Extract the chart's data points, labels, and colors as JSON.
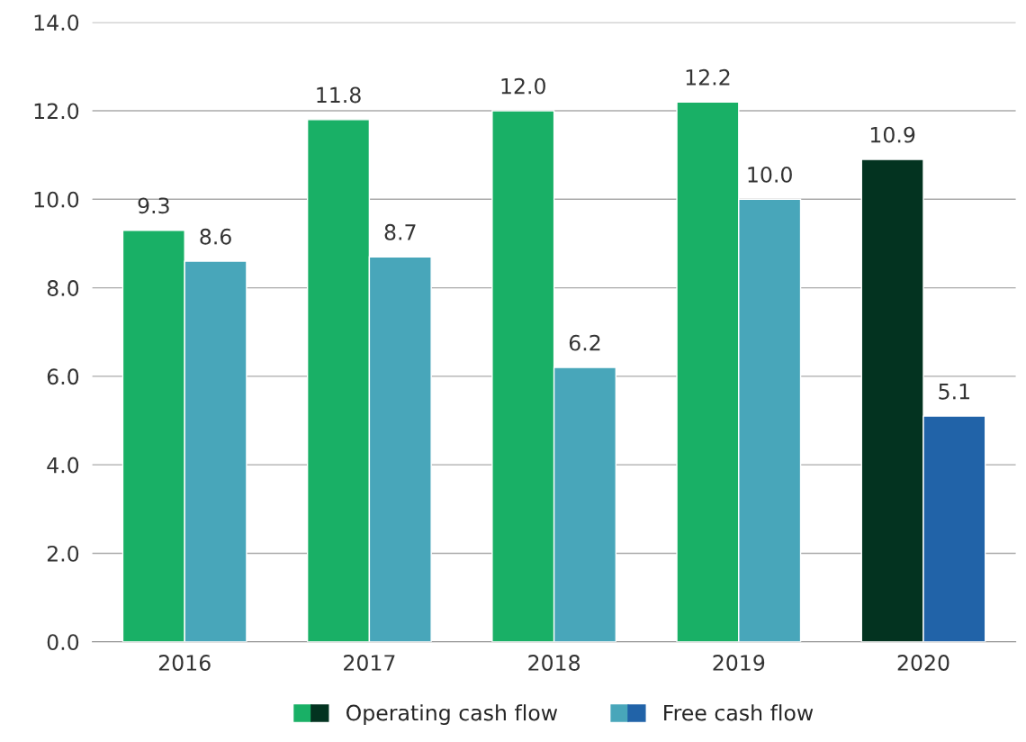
{
  "chart_data": {
    "type": "bar",
    "categories": [
      "2016",
      "2017",
      "2018",
      "2019",
      "2020"
    ],
    "series": [
      {
        "name": "Operating cash flow",
        "color": "#19b066",
        "colors": [
          "#19b066",
          "#19b066",
          "#19b066",
          "#19b066",
          "#033320"
        ],
        "values": [
          9.3,
          11.8,
          12.0,
          12.2,
          10.9
        ],
        "value_labels": [
          "9.3",
          "11.8",
          "12.0",
          "12.2",
          "10.9"
        ]
      },
      {
        "name": "Free cash flow",
        "color": "#48a6ba",
        "colors": [
          "#48a6ba",
          "#48a6ba",
          "#48a6ba",
          "#48a6ba",
          "#2163a8"
        ],
        "values": [
          8.6,
          8.7,
          6.2,
          10.0,
          5.1
        ],
        "value_labels": [
          "8.6",
          "8.7",
          "6.2",
          "10.0",
          "5.1"
        ]
      }
    ],
    "ylim": [
      0,
      14
    ],
    "yticks": [
      {
        "value": 0,
        "label": "0.0"
      },
      {
        "value": 2,
        "label": "2.0"
      },
      {
        "value": 4,
        "label": "4.0"
      },
      {
        "value": 6,
        "label": "6.0"
      },
      {
        "value": 8,
        "label": "8.0"
      },
      {
        "value": 10,
        "label": "10.0"
      },
      {
        "value": 12,
        "label": "12.0"
      },
      {
        "value": 14,
        "label": "14.0"
      }
    ],
    "grid": "y",
    "legend": "bottom"
  }
}
